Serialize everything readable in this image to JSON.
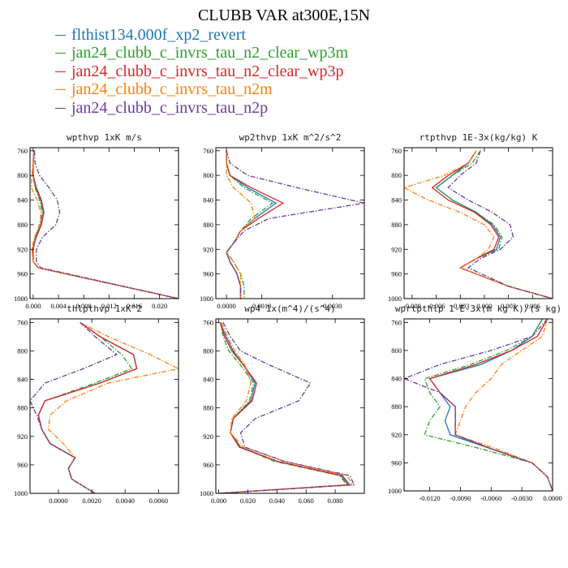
{
  "title": "CLUBB VAR at300E,15N",
  "legend": [
    {
      "label": "flthist134.000f_xp2_revert",
      "color": "#1f77b4",
      "dash": "solid"
    },
    {
      "label": "jan24_clubb_c_invrs_tau_n2_clear_wp3m",
      "color": "#2ca02c",
      "dash": "dashed"
    },
    {
      "label": "jan24_clubb_c_invrs_tau_n2_clear_wp3p",
      "color": "#d62728",
      "dash": "solid"
    },
    {
      "label": "jan24_clubb_c_invrs_tau_n2m",
      "color": "#ff7f0e",
      "dash": "dashed"
    },
    {
      "label": "jan24_clubb_c_invrs_tau_n2p",
      "color": "#6a3d9a",
      "dash": "dashed"
    }
  ],
  "chart_data": [
    {
      "type": "line",
      "title": "wpthvp  1xK m/s",
      "xlim": [
        -0.0005,
        0.023
      ],
      "ylim": [
        755,
        1000
      ],
      "xticks": [
        0.0,
        0.004,
        0.008,
        0.012,
        0.016,
        0.02
      ],
      "xtick_labels": [
        "0.000",
        "0.004",
        "0.008",
        "0.012",
        "0.016",
        "0.020"
      ],
      "yticks": [
        760,
        800,
        840,
        880,
        920,
        960,
        1000
      ],
      "ytick_labels": [
        "760",
        "800",
        "840",
        "880",
        "920",
        "960",
        "1000"
      ],
      "y": [
        760,
        780,
        800,
        820,
        840,
        860,
        880,
        900,
        920,
        940,
        950,
        1000
      ],
      "series": [
        {
          "values": [
            0.0001,
            0.0,
            0.0,
            0.0004,
            0.0012,
            0.0016,
            0.0012,
            0.0004,
            0.0,
            0.0,
            0.0008,
            0.023
          ]
        },
        {
          "values": [
            0.0001,
            0.0,
            0.0,
            0.0003,
            0.001,
            0.0014,
            0.001,
            0.0003,
            0.0,
            0.0,
            0.0008,
            0.023
          ]
        },
        {
          "values": [
            0.0001,
            0.0,
            0.0,
            0.0005,
            0.0013,
            0.0017,
            0.0013,
            0.0005,
            -0.0001,
            0.0,
            0.0008,
            0.023
          ]
        },
        {
          "values": [
            0.0001,
            0.0,
            -0.0002,
            -0.0003,
            0.0006,
            0.0012,
            0.0011,
            0.0002,
            -0.0002,
            0.0,
            0.0008,
            0.023
          ]
        },
        {
          "values": [
            0.0002,
            0.0003,
            0.001,
            0.0025,
            0.0038,
            0.0042,
            0.0036,
            0.0015,
            0.0005,
            0.0005,
            0.0012,
            0.023
          ]
        }
      ]
    },
    {
      "type": "line",
      "title": "wp2thvp  1xK m^2/s^2",
      "xlim": [
        -0.0003,
        0.0039
      ],
      "ylim": [
        755,
        1000
      ],
      "xticks": [
        0.0,
        0.001,
        0.003
      ],
      "xtick_labels": [
        "0.0000",
        "0.0010",
        "0.0030"
      ],
      "yticks": [
        760,
        800,
        840,
        880,
        920,
        960,
        1000
      ],
      "ytick_labels": [
        "760",
        "800",
        "840",
        "880",
        "920",
        "960",
        "1000"
      ],
      "y": [
        760,
        780,
        800,
        820,
        845,
        870,
        890,
        910,
        925,
        940,
        960,
        980,
        1000
      ],
      "series": [
        {
          "values": [
            0.0,
            0.0,
            0.0001,
            0.0006,
            0.0014,
            0.0008,
            0.0004,
            0.0002,
            0.0,
            0.0001,
            0.0003,
            0.0004,
            0.0004
          ]
        },
        {
          "values": [
            0.0,
            0.0,
            0.0001,
            0.0005,
            0.0013,
            0.0007,
            0.0004,
            0.0002,
            0.0,
            0.0002,
            0.0004,
            0.0005,
            0.0005
          ]
        },
        {
          "values": [
            0.0,
            0.0,
            0.0001,
            0.0007,
            0.0016,
            0.0009,
            0.0004,
            0.0002,
            0.0,
            0.0001,
            0.0003,
            0.0004,
            0.0004
          ]
        },
        {
          "values": [
            0.0,
            0.0,
            0.0,
            0.0002,
            0.0007,
            0.0008,
            0.0004,
            0.0002,
            0.0,
            0.0002,
            0.0004,
            0.0004,
            0.0004
          ]
        },
        {
          "values": [
            0.0,
            0.0001,
            0.0006,
            0.002,
            0.0039,
            0.0012,
            0.0005,
            0.0002,
            0.0,
            0.0001,
            0.0003,
            0.0004,
            0.0004
          ]
        }
      ]
    },
    {
      "type": "line",
      "title": "rtpthvp  1E-3x(kg/kg) K",
      "xlim": [
        -0.01,
        0.0085
      ],
      "ylim": [
        755,
        1000
      ],
      "xticks": [
        -0.009,
        -0.006,
        -0.003,
        0.0,
        0.003,
        0.006
      ],
      "xtick_labels": [
        "-0.009",
        "-0.006",
        "-0.003",
        "0.000",
        "0.003",
        "0.006"
      ],
      "yticks": [
        760,
        800,
        840,
        880,
        920,
        960,
        1000
      ],
      "ytick_labels": [
        "760",
        "800",
        "840",
        "880",
        "920",
        "960",
        "1000"
      ],
      "y": [
        760,
        780,
        800,
        820,
        840,
        860,
        880,
        900,
        920,
        935,
        950,
        980,
        1000
      ],
      "series": [
        {
          "values": [
            -0.001,
            -0.002,
            -0.004,
            -0.006,
            -0.004,
            -0.001,
            0.001,
            0.002,
            0.0015,
            -0.001,
            -0.003,
            0.003,
            0.0085
          ]
        },
        {
          "values": [
            -0.0005,
            -0.0015,
            -0.004,
            -0.006,
            -0.004,
            -0.001,
            0.0012,
            0.0022,
            0.0018,
            -0.001,
            -0.003,
            0.003,
            0.0085
          ]
        },
        {
          "values": [
            -0.001,
            -0.002,
            -0.0045,
            -0.0065,
            -0.0045,
            -0.0012,
            0.0008,
            0.0018,
            0.0012,
            -0.001,
            -0.003,
            0.003,
            0.0085
          ]
        },
        {
          "values": [
            -0.001,
            -0.002,
            -0.005,
            -0.01,
            -0.007,
            -0.003,
            0.0,
            0.0012,
            0.0005,
            -0.001,
            -0.003,
            0.003,
            0.0085
          ]
        },
        {
          "values": [
            -0.0005,
            -0.001,
            -0.003,
            -0.0045,
            -0.002,
            0.001,
            0.0032,
            0.0036,
            0.002,
            -0.0005,
            -0.002,
            0.003,
            0.0085
          ]
        }
      ]
    },
    {
      "type": "line",
      "title": "thlpthvp  1xK^2",
      "xlim": [
        -0.0017,
        0.0072
      ],
      "ylim": [
        755,
        1000
      ],
      "xticks": [
        0.0,
        0.002,
        0.004,
        0.006
      ],
      "xtick_labels": [
        "0.0000",
        "0.0020",
        "0.0040",
        "0.0060"
      ],
      "yticks": [
        760,
        800,
        840,
        880,
        920,
        960,
        1000
      ],
      "ytick_labels": [
        "760",
        "800",
        "840",
        "880",
        "920",
        "960",
        "1000"
      ],
      "y": [
        760,
        780,
        805,
        825,
        845,
        870,
        890,
        910,
        930,
        950,
        965,
        980,
        1000
      ],
      "series": [
        {
          "values": [
            0.0013,
            0.0025,
            0.0045,
            0.0047,
            0.0025,
            -0.0008,
            -0.0012,
            -0.001,
            -0.0005,
            0.001,
            0.0006,
            0.0008,
            0.0022
          ]
        },
        {
          "values": [
            0.0013,
            0.0025,
            0.0038,
            0.0044,
            0.0022,
            -0.0008,
            -0.0012,
            -0.001,
            -0.0005,
            0.001,
            0.0006,
            0.0008,
            0.0022
          ]
        },
        {
          "values": [
            0.0013,
            0.0025,
            0.0045,
            0.0047,
            0.0025,
            -0.0008,
            -0.0012,
            -0.001,
            -0.0005,
            0.001,
            0.0006,
            0.0008,
            0.0022
          ]
        },
        {
          "values": [
            0.0013,
            0.003,
            0.0055,
            0.0072,
            0.003,
            0.0005,
            -0.0005,
            -0.0006,
            0.0003,
            0.001,
            0.0006,
            0.0008,
            0.0022
          ]
        },
        {
          "values": [
            0.0013,
            0.0022,
            0.0035,
            0.0015,
            -0.0008,
            -0.0017,
            -0.0013,
            -0.001,
            -0.0005,
            0.001,
            0.0006,
            0.0008,
            0.0022
          ]
        }
      ]
    },
    {
      "type": "line",
      "title": "wp4  1x(m^4)/(s^4)",
      "xlim": [
        -0.002,
        0.1
      ],
      "ylim": [
        755,
        1000
      ],
      "xticks": [
        0.0,
        0.02,
        0.04,
        0.06,
        0.08
      ],
      "xtick_labels": [
        "0.000",
        "0.020",
        "0.040",
        "0.060",
        "0.080"
      ],
      "yticks": [
        760,
        800,
        840,
        880,
        920,
        960,
        1000
      ],
      "ytick_labels": [
        "760",
        "800",
        "840",
        "880",
        "920",
        "960",
        "1000"
      ],
      "y": [
        760,
        780,
        800,
        820,
        845,
        870,
        895,
        915,
        935,
        955,
        975,
        988,
        1000
      ],
      "series": [
        {
          "values": [
            0.001,
            0.005,
            0.01,
            0.017,
            0.025,
            0.022,
            0.01,
            0.008,
            0.015,
            0.04,
            0.085,
            0.09,
            0.0
          ]
        },
        {
          "values": [
            0.001,
            0.003,
            0.007,
            0.015,
            0.024,
            0.021,
            0.01,
            0.008,
            0.015,
            0.038,
            0.083,
            0.088,
            0.0
          ]
        },
        {
          "values": [
            0.001,
            0.004,
            0.009,
            0.017,
            0.026,
            0.023,
            0.01,
            0.008,
            0.014,
            0.04,
            0.084,
            0.089,
            0.0
          ]
        },
        {
          "values": [
            0.002,
            0.006,
            0.011,
            0.018,
            0.022,
            0.019,
            0.009,
            0.008,
            0.017,
            0.045,
            0.088,
            0.092,
            0.0
          ]
        },
        {
          "values": [
            0.003,
            0.008,
            0.015,
            0.035,
            0.063,
            0.055,
            0.025,
            0.015,
            0.018,
            0.045,
            0.09,
            0.093,
            0.0
          ]
        }
      ]
    },
    {
      "type": "line",
      "title": "wprtpthlp  1-E-3x(m kg K)/(s kg)",
      "xlim": [
        -0.0145,
        0.0
      ],
      "ylim": [
        755,
        1000
      ],
      "xticks": [
        -0.012,
        -0.009,
        -0.006,
        -0.003,
        0.0
      ],
      "xtick_labels": [
        "-0.0120",
        "-0.0090",
        "-0.0060",
        "-0.0030",
        "0.0000"
      ],
      "yticks": [
        760,
        800,
        840,
        880,
        920,
        960,
        1000
      ],
      "ytick_labels": [
        "760",
        "800",
        "840",
        "880",
        "920",
        "960",
        "1000"
      ],
      "y": [
        755,
        780,
        800,
        820,
        840,
        860,
        880,
        900,
        920,
        940,
        960,
        980,
        1000
      ],
      "series": [
        {
          "values": [
            -0.001,
            -0.002,
            -0.004,
            -0.007,
            -0.012,
            -0.011,
            -0.01,
            -0.0105,
            -0.01,
            -0.006,
            -0.002,
            -0.0005,
            0.0
          ]
        },
        {
          "values": [
            -0.001,
            -0.002,
            -0.0045,
            -0.008,
            -0.0125,
            -0.012,
            -0.011,
            -0.012,
            -0.0125,
            -0.007,
            -0.002,
            -0.0005,
            0.0
          ]
        },
        {
          "values": [
            -0.0005,
            -0.0015,
            -0.004,
            -0.0075,
            -0.012,
            -0.011,
            -0.0095,
            -0.0095,
            -0.0095,
            -0.006,
            -0.002,
            -0.0005,
            0.0
          ]
        },
        {
          "values": [
            -0.0005,
            -0.001,
            -0.003,
            -0.005,
            -0.006,
            -0.0075,
            -0.0085,
            -0.009,
            -0.0095,
            -0.0055,
            -0.002,
            -0.0005,
            0.0
          ]
        },
        {
          "values": [
            -0.0005,
            -0.002,
            -0.006,
            -0.011,
            -0.0145,
            -0.011,
            -0.0095,
            -0.0095,
            -0.0095,
            -0.006,
            -0.002,
            -0.0005,
            0.0
          ]
        }
      ]
    }
  ]
}
